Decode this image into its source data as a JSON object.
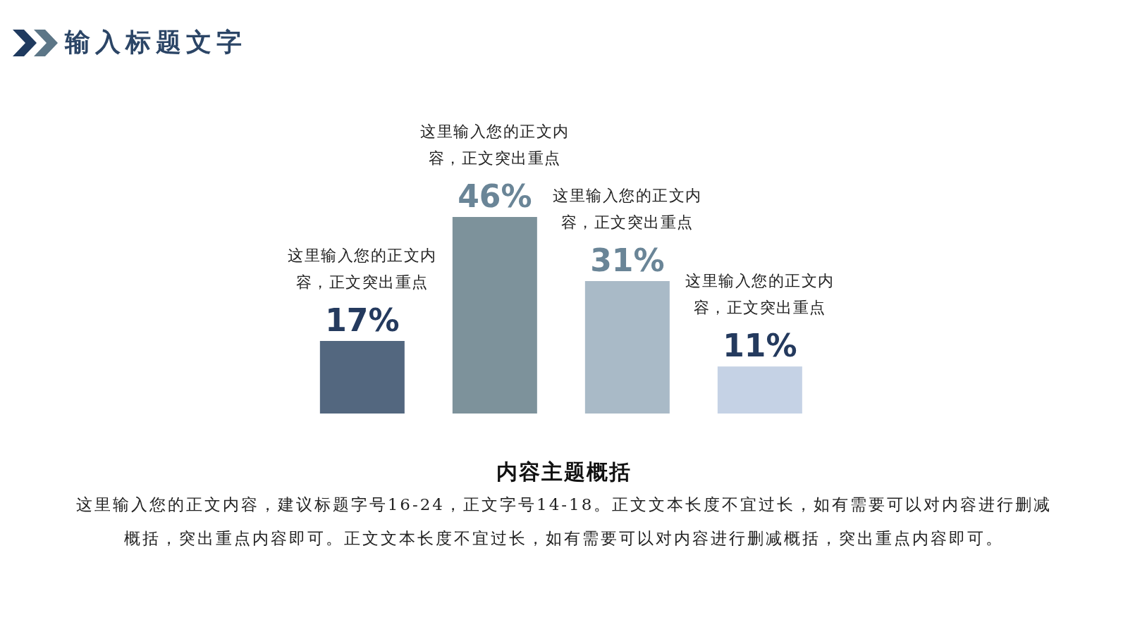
{
  "chart_data": {
    "type": "bar",
    "title": "输入标题文字",
    "categories": [
      null,
      null,
      null,
      null
    ],
    "values": [
      17,
      46,
      31,
      11
    ],
    "colors": [
      "#53677f",
      "#7d929b",
      "#a9bac7",
      "#c5d2e5"
    ],
    "value_labels": [
      "17%",
      "46%",
      "31%",
      "11%"
    ],
    "tick_labels": false,
    "annotations": [
      "这里输入您的正文内容，正文突出重点",
      "这里输入您的正文内容，正文突出重点",
      "这里输入您的正文内容，正文突出重点",
      "这里输入您的正文内容，正文突出重点",
      "内容主题概括",
      "这里输入您的正文内容，建议标题字号16-24，正文字号14-18。正文文本长度不宜过长，如有需要可以对内容进行删减概括，突出重点内容即可。正文文本长度不宜过长，如有需要可以对内容进行删减概括，突出重点内容即可。"
    ]
  }
}
